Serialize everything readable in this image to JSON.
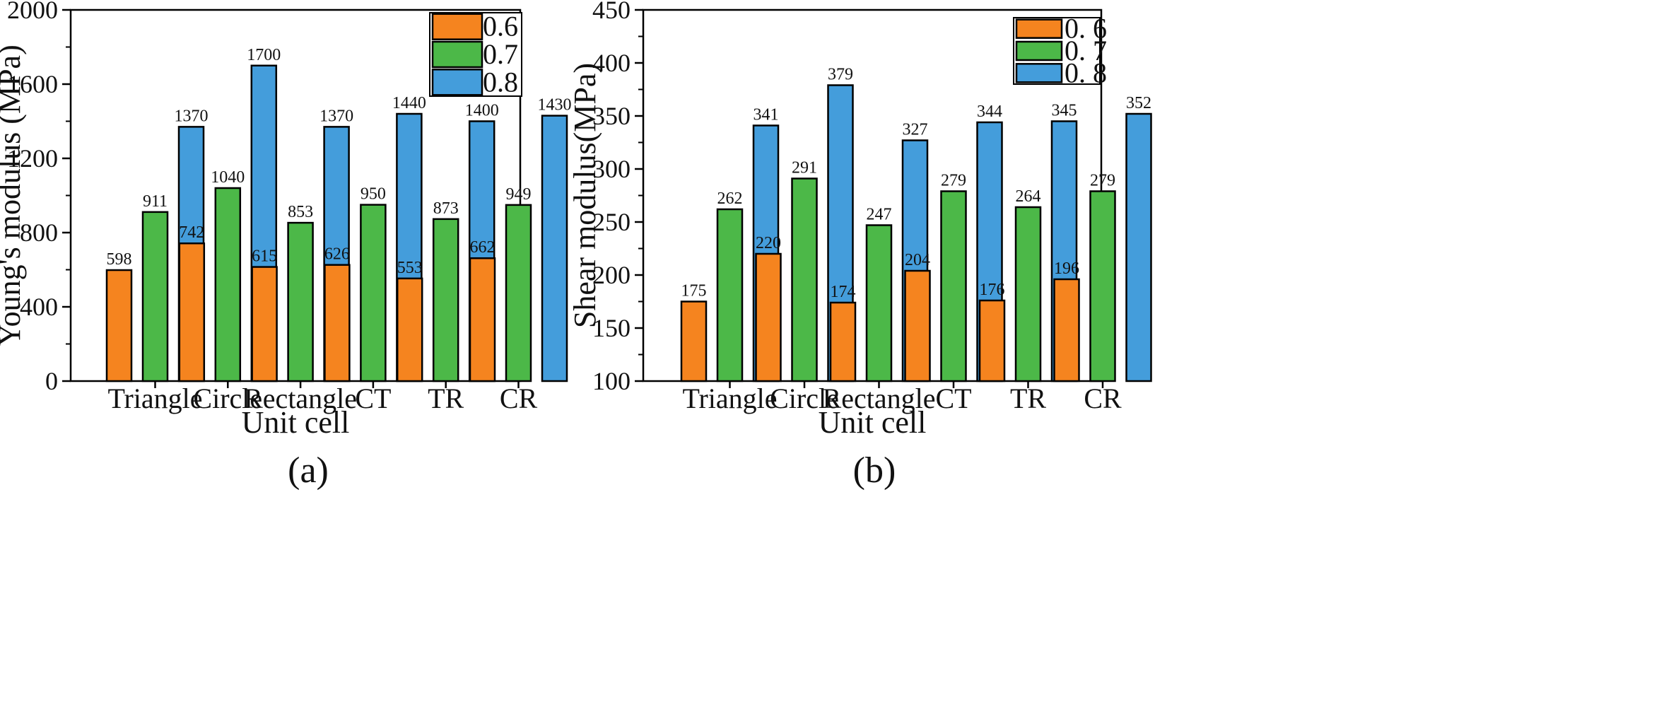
{
  "chart_data": [
    {
      "type": "bar",
      "panel_label": "(a)",
      "title": "",
      "xlabel": "Unit cell",
      "ylabel": "Young's modulus (MPa)",
      "ylim": [
        0,
        2000
      ],
      "yticks": [
        0,
        400,
        800,
        1200,
        1600,
        2000
      ],
      "ytick_labels": [
        "0",
        "400",
        "800",
        "1200",
        "1600",
        "2000"
      ],
      "grid": false,
      "legend_position": "top-right",
      "categories": [
        "Triangle",
        "Circle",
        "Rectangle",
        "CT",
        "TR",
        "CR"
      ],
      "series": [
        {
          "name": "0.6",
          "color": "#f5841f",
          "values": [
            598,
            742,
            615,
            626,
            553,
            662
          ],
          "labels": [
            "598",
            "742",
            "615",
            "626",
            "553",
            "662"
          ]
        },
        {
          "name": "0.7",
          "color": "#4cb848",
          "values": [
            911,
            1040,
            853,
            950,
            873,
            949
          ],
          "labels": [
            "911",
            "1040",
            "853",
            "950",
            "873",
            "949"
          ]
        },
        {
          "name": "0.8",
          "color": "#449ddb",
          "values": [
            1370,
            1700,
            1370,
            1440,
            1400,
            1430
          ],
          "labels": [
            "1370",
            "1700",
            "1370",
            "1440",
            "1400",
            "1430"
          ]
        }
      ]
    },
    {
      "type": "bar",
      "panel_label": "(b)",
      "title": "",
      "xlabel": "Unit cell",
      "ylabel": "Shear modulus(MPa)",
      "ylim": [
        100,
        450
      ],
      "yticks": [
        100,
        150,
        200,
        250,
        300,
        350,
        400,
        450
      ],
      "ytick_labels": [
        "100",
        "150",
        "200",
        "250",
        "300",
        "350",
        "400",
        "450"
      ],
      "grid": false,
      "legend_position": "top-right",
      "categories": [
        "Triangle",
        "Circle",
        "Rectangle",
        "CT",
        "TR",
        "CR"
      ],
      "series": [
        {
          "name": "0. 6",
          "color": "#f5841f",
          "values": [
            175,
            220,
            174,
            204,
            176,
            196
          ],
          "labels": [
            "175",
            "220",
            "174",
            "204",
            "176",
            "196"
          ]
        },
        {
          "name": "0. 7",
          "color": "#4cb848",
          "values": [
            262,
            291,
            247,
            279,
            264,
            279
          ],
          "labels": [
            "262",
            "291",
            "247",
            "279",
            "264",
            "279"
          ]
        },
        {
          "name": "0. 8",
          "color": "#449ddb",
          "values": [
            341,
            379,
            327,
            344,
            345,
            352
          ],
          "labels": [
            "341",
            "379",
            "327",
            "344",
            "345",
            "352"
          ]
        }
      ]
    }
  ]
}
